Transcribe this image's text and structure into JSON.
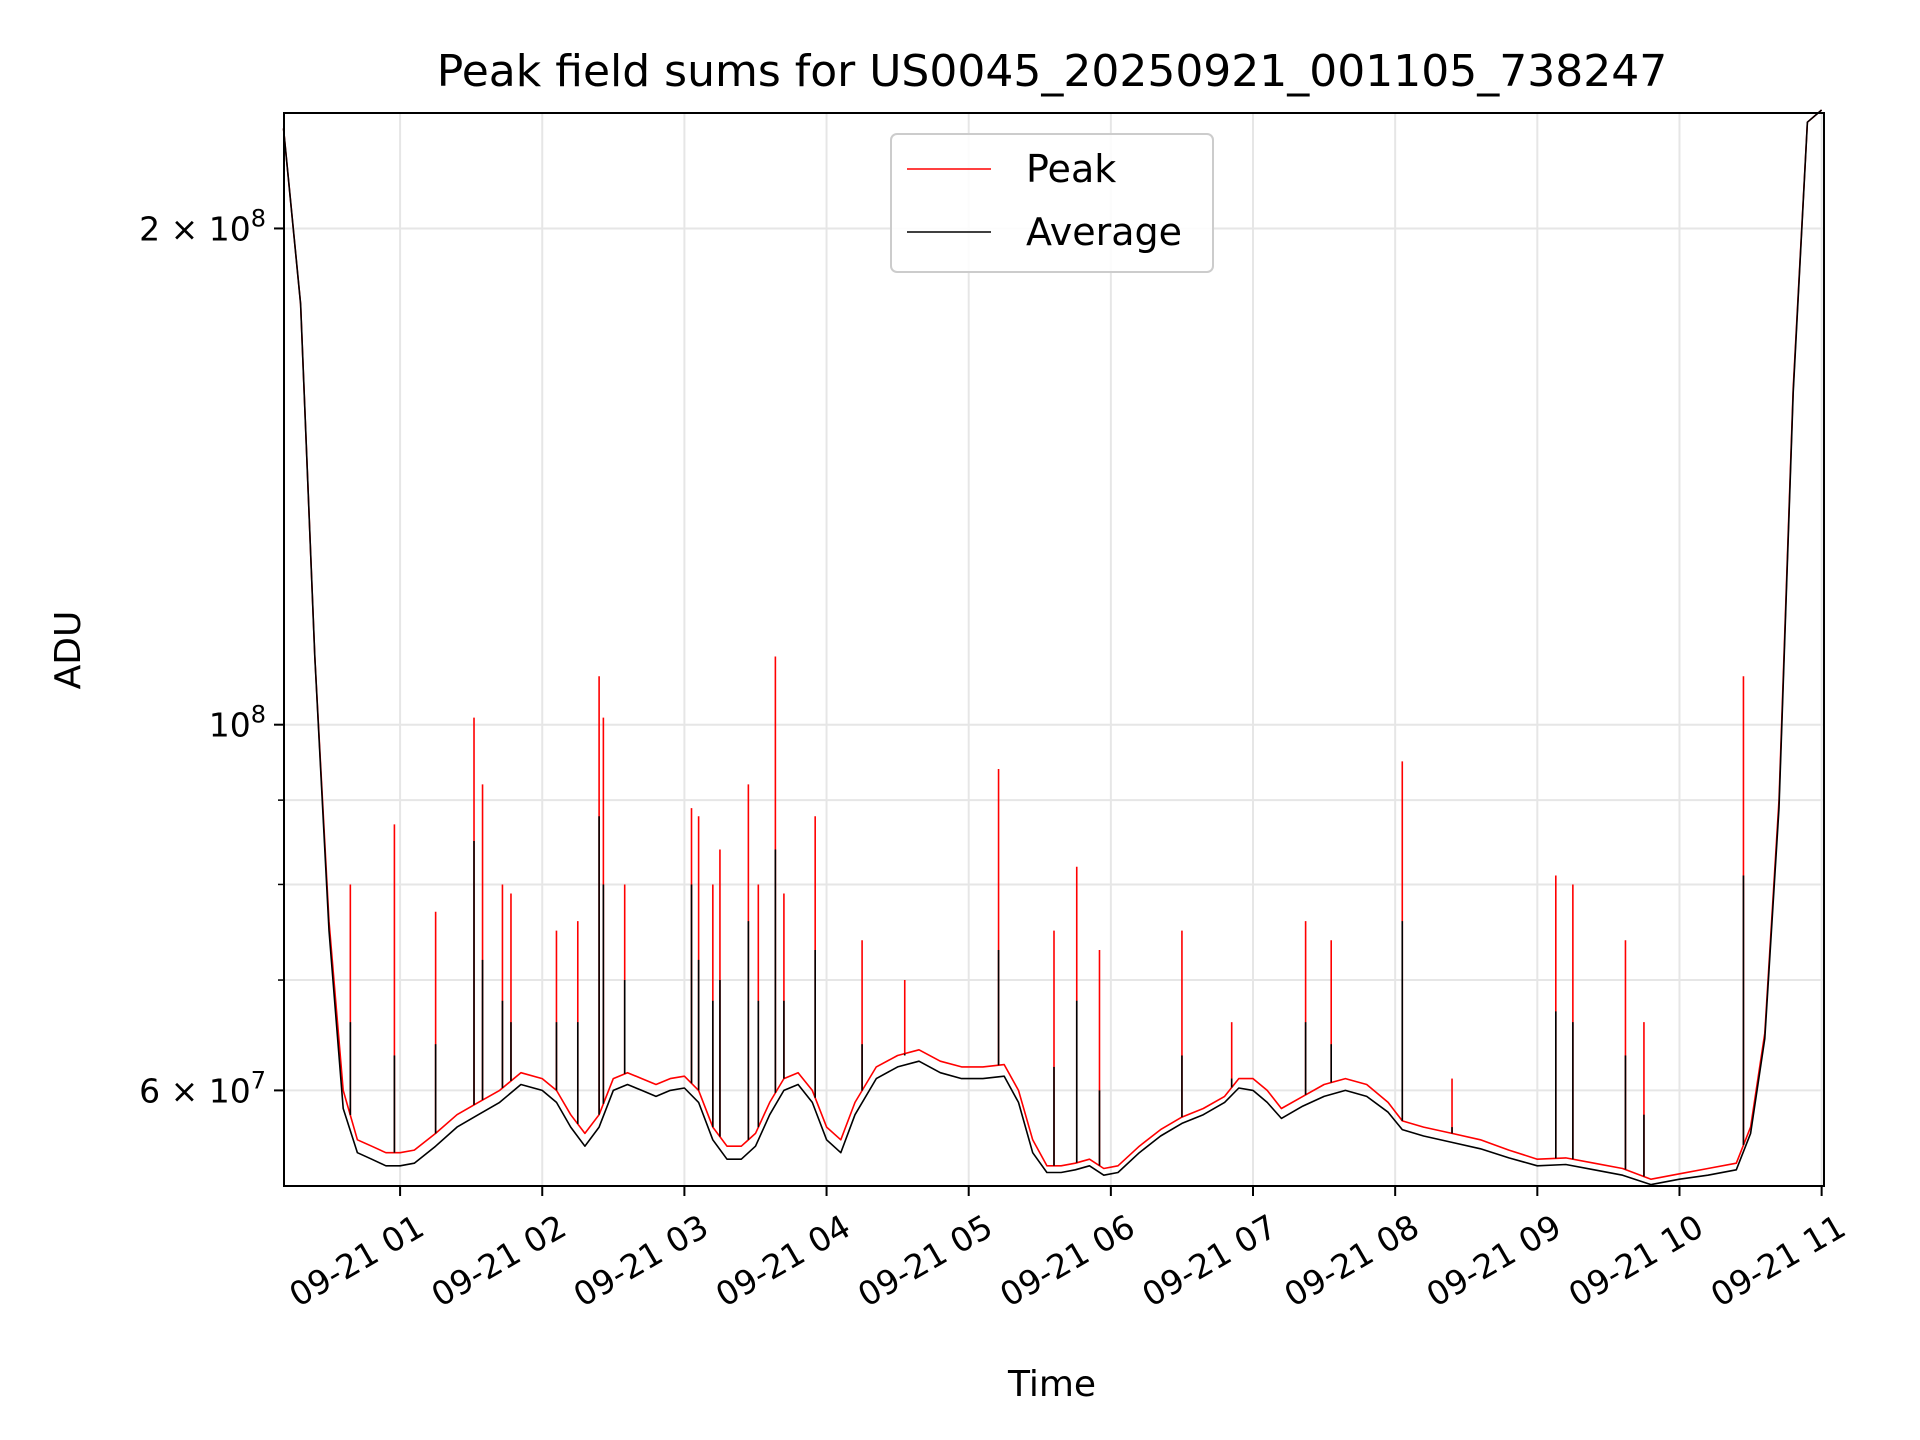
{
  "chart_data": {
    "type": "line",
    "title": "Peak field sums for US0045_20250921_001105_738247",
    "xlabel": "Time",
    "ylabel": "ADU",
    "yscale": "log",
    "ylim": [
      52500000,
      235000000
    ],
    "xlim": [
      "2025-09-21 00:11",
      "2025-09-21 11:01"
    ],
    "grid": true,
    "legend_position": "top-center",
    "x_ticks": [
      "09-21 01",
      "09-21 02",
      "09-21 03",
      "09-21 04",
      "09-21 05",
      "09-21 06",
      "09-21 07",
      "09-21 08",
      "09-21 09",
      "09-21 10",
      "09-21 11"
    ],
    "x_tick_hours": [
      1,
      2,
      3,
      4,
      5,
      6,
      7,
      8,
      9,
      10,
      11
    ],
    "y_major_ticks": [
      {
        "value": 60000000,
        "base": "6 × 10",
        "exp": "7"
      },
      {
        "value": 100000000,
        "base": "10",
        "exp": "8"
      },
      {
        "value": 200000000,
        "base": "2 × 10",
        "exp": "8"
      }
    ],
    "y_minor_ticks": [
      70000000,
      80000000,
      90000000
    ],
    "series": [
      {
        "name": "Peak",
        "color": "#ff0000",
        "x_hours": [
          0.18,
          0.3,
          0.4,
          0.5,
          0.6,
          0.7,
          0.8,
          0.9,
          1.0,
          1.1,
          1.25,
          1.4,
          1.55,
          1.7,
          1.85,
          2.0,
          2.1,
          2.2,
          2.3,
          2.4,
          2.5,
          2.6,
          2.7,
          2.8,
          2.9,
          3.0,
          3.1,
          3.2,
          3.3,
          3.4,
          3.5,
          3.6,
          3.7,
          3.8,
          3.9,
          4.0,
          4.1,
          4.2,
          4.35,
          4.5,
          4.65,
          4.8,
          4.95,
          5.1,
          5.25,
          5.35,
          5.45,
          5.55,
          5.65,
          5.75,
          5.85,
          5.95,
          6.05,
          6.2,
          6.35,
          6.5,
          6.65,
          6.8,
          6.9,
          7.0,
          7.1,
          7.2,
          7.35,
          7.5,
          7.65,
          7.8,
          7.95,
          8.05,
          8.2,
          8.4,
          8.6,
          8.8,
          9.0,
          9.2,
          9.4,
          9.6,
          9.8,
          10.0,
          10.2,
          10.4,
          10.5,
          10.6,
          10.7,
          10.8,
          10.9,
          11.0
        ],
        "values": [
          230000000,
          180000000,
          110000000,
          76000000,
          60000000,
          56000000,
          55500000,
          55000000,
          55000000,
          55200000,
          56500000,
          58000000,
          59000000,
          60000000,
          61500000,
          61000000,
          60000000,
          58000000,
          56500000,
          58000000,
          61000000,
          61500000,
          61000000,
          60500000,
          61000000,
          61200000,
          60000000,
          57000000,
          55500000,
          55500000,
          56500000,
          59000000,
          61000000,
          61500000,
          60000000,
          57000000,
          56000000,
          59000000,
          62000000,
          63000000,
          63500000,
          62500000,
          62000000,
          62000000,
          62200000,
          60000000,
          56000000,
          54000000,
          54000000,
          54200000,
          54500000,
          53800000,
          54000000,
          55500000,
          56800000,
          57800000,
          58500000,
          59500000,
          61000000,
          61000000,
          60000000,
          58500000,
          59500000,
          60500000,
          61000000,
          60500000,
          59000000,
          57500000,
          57000000,
          56500000,
          56000000,
          55200000,
          54500000,
          54600000,
          54200000,
          53800000,
          53000000,
          53400000,
          53800000,
          54200000,
          57000000,
          65000000,
          90000000,
          160000000,
          232000000,
          236000000
        ]
      },
      {
        "name": "Average",
        "color": "#000000",
        "x_hours": [
          0.18,
          0.3,
          0.4,
          0.5,
          0.6,
          0.7,
          0.8,
          0.9,
          1.0,
          1.1,
          1.25,
          1.4,
          1.55,
          1.7,
          1.85,
          2.0,
          2.1,
          2.2,
          2.3,
          2.4,
          2.5,
          2.6,
          2.7,
          2.8,
          2.9,
          3.0,
          3.1,
          3.2,
          3.3,
          3.4,
          3.5,
          3.6,
          3.7,
          3.8,
          3.9,
          4.0,
          4.1,
          4.2,
          4.35,
          4.5,
          4.65,
          4.8,
          4.95,
          5.1,
          5.25,
          5.35,
          5.45,
          5.55,
          5.65,
          5.75,
          5.85,
          5.95,
          6.05,
          6.2,
          6.35,
          6.5,
          6.65,
          6.8,
          6.9,
          7.0,
          7.1,
          7.2,
          7.35,
          7.5,
          7.65,
          7.8,
          7.95,
          8.05,
          8.2,
          8.4,
          8.6,
          8.8,
          9.0,
          9.2,
          9.4,
          9.6,
          9.8,
          10.0,
          10.2,
          10.4,
          10.5,
          10.6,
          10.7,
          10.8,
          10.9,
          11.0
        ],
        "values": [
          230000000,
          180000000,
          110000000,
          75000000,
          58500000,
          55000000,
          54500000,
          54000000,
          54000000,
          54200000,
          55500000,
          57000000,
          58000000,
          59000000,
          60500000,
          60000000,
          59000000,
          57000000,
          55500000,
          57000000,
          60000000,
          60500000,
          60000000,
          59500000,
          60000000,
          60200000,
          59000000,
          56000000,
          54500000,
          54500000,
          55500000,
          58000000,
          60000000,
          60500000,
          59000000,
          56000000,
          55000000,
          58000000,
          61000000,
          62000000,
          62500000,
          61500000,
          61000000,
          61000000,
          61200000,
          59000000,
          55000000,
          53500000,
          53500000,
          53700000,
          54000000,
          53300000,
          53500000,
          55000000,
          56300000,
          57300000,
          58000000,
          59000000,
          60200000,
          60000000,
          59000000,
          57700000,
          58700000,
          59500000,
          60000000,
          59500000,
          58200000,
          56800000,
          56300000,
          55800000,
          55300000,
          54600000,
          54000000,
          54100000,
          53700000,
          53300000,
          52600000,
          53000000,
          53300000,
          53700000,
          56500000,
          64500000,
          89000000,
          159000000,
          232000000,
          236000000
        ]
      }
    ],
    "spikes": [
      {
        "t": 0.65,
        "peak": 80000000,
        "avg": 66000000
      },
      {
        "t": 0.96,
        "peak": 87000000,
        "avg": 63000000
      },
      {
        "t": 1.25,
        "peak": 77000000,
        "avg": 64000000
      },
      {
        "t": 1.52,
        "peak": 101000000,
        "avg": 85000000
      },
      {
        "t": 1.58,
        "peak": 92000000,
        "avg": 72000000
      },
      {
        "t": 1.72,
        "peak": 80000000,
        "avg": 68000000
      },
      {
        "t": 1.78,
        "peak": 79000000,
        "avg": 66000000
      },
      {
        "t": 2.1,
        "peak": 75000000,
        "avg": 66000000
      },
      {
        "t": 2.25,
        "peak": 76000000,
        "avg": 66000000
      },
      {
        "t": 2.4,
        "peak": 107000000,
        "avg": 88000000
      },
      {
        "t": 2.43,
        "peak": 101000000,
        "avg": 80000000
      },
      {
        "t": 2.58,
        "peak": 80000000,
        "avg": 70000000
      },
      {
        "t": 3.05,
        "peak": 89000000,
        "avg": 80000000
      },
      {
        "t": 3.1,
        "peak": 88000000,
        "avg": 72000000
      },
      {
        "t": 3.2,
        "peak": 80000000,
        "avg": 68000000
      },
      {
        "t": 3.25,
        "peak": 84000000,
        "avg": 70000000
      },
      {
        "t": 3.45,
        "peak": 92000000,
        "avg": 76000000
      },
      {
        "t": 3.52,
        "peak": 80000000,
        "avg": 68000000
      },
      {
        "t": 3.64,
        "peak": 110000000,
        "avg": 84000000
      },
      {
        "t": 3.7,
        "peak": 79000000,
        "avg": 68000000
      },
      {
        "t": 3.92,
        "peak": 88000000,
        "avg": 73000000
      },
      {
        "t": 4.25,
        "peak": 74000000,
        "avg": 64000000
      },
      {
        "t": 4.55,
        "peak": 70000000,
        "avg": 63000000
      },
      {
        "t": 5.21,
        "peak": 94000000,
        "avg": 73000000
      },
      {
        "t": 5.6,
        "peak": 75000000,
        "avg": 62000000
      },
      {
        "t": 5.76,
        "peak": 82000000,
        "avg": 68000000
      },
      {
        "t": 5.92,
        "peak": 73000000,
        "avg": 60000000
      },
      {
        "t": 6.5,
        "peak": 75000000,
        "avg": 63000000
      },
      {
        "t": 6.85,
        "peak": 66000000,
        "avg": 61000000
      },
      {
        "t": 7.37,
        "peak": 76000000,
        "avg": 66000000
      },
      {
        "t": 7.55,
        "peak": 74000000,
        "avg": 64000000
      },
      {
        "t": 8.05,
        "peak": 95000000,
        "avg": 76000000
      },
      {
        "t": 8.4,
        "peak": 61000000,
        "avg": 57000000
      },
      {
        "t": 9.13,
        "peak": 81000000,
        "avg": 67000000
      },
      {
        "t": 9.25,
        "peak": 80000000,
        "avg": 66000000
      },
      {
        "t": 9.62,
        "peak": 74000000,
        "avg": 63000000
      },
      {
        "t": 9.75,
        "peak": 66000000,
        "avg": 58000000
      },
      {
        "t": 10.45,
        "peak": 107000000,
        "avg": 81000000
      }
    ]
  }
}
